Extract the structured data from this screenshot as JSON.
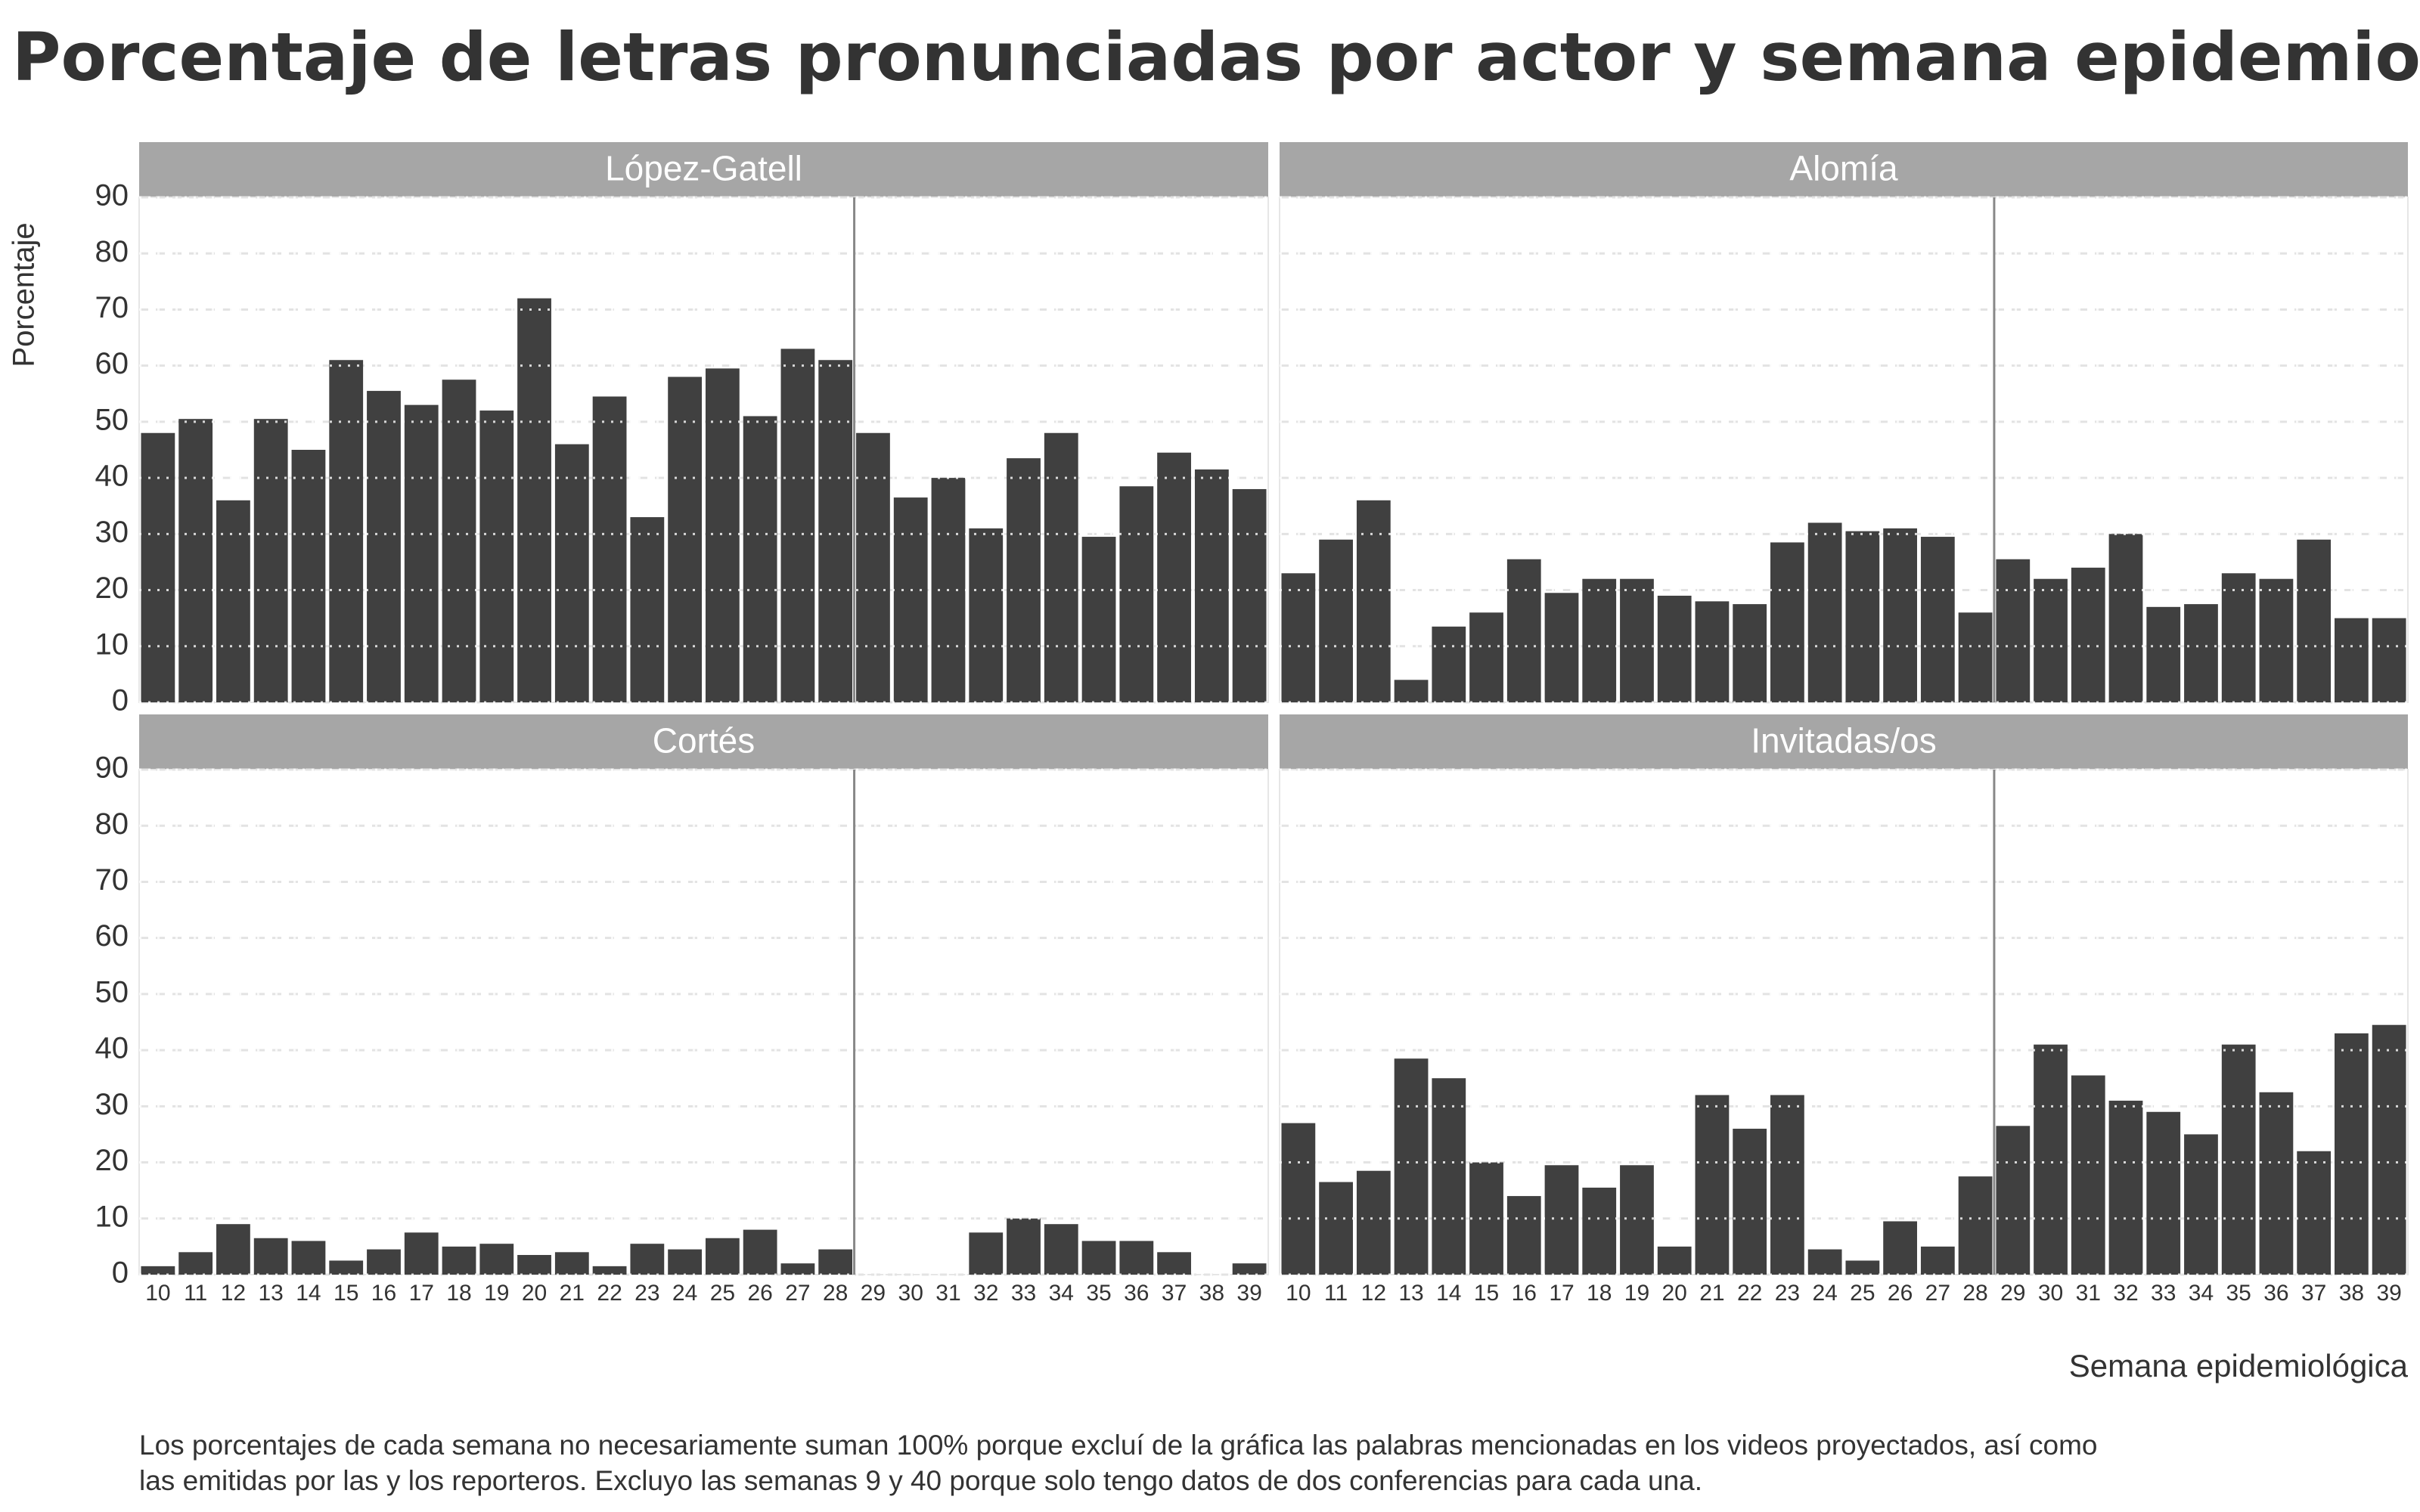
{
  "title": "Porcentaje de letras pronunciadas por actor y semana epidemiológica",
  "ylabel": "Porcentaje",
  "xlabel": "Semana epidemiológica",
  "note": [
    "Los porcentajes de cada semana no necesariamente suman 100% porque excluí de la gráfica las palabras mencionadas en los videos proyectados, así como",
    "las emitidas por las y los reporteros. Excluyo las semanas 9 y 40 porque solo tengo datos de dos conferencias para cada una."
  ],
  "chart_data": [
    {
      "type": "bar",
      "title": "López-Gatell",
      "color": "#404040",
      "grid": true,
      "categories": [
        "10",
        "11",
        "12",
        "13",
        "14",
        "15",
        "16",
        "17",
        "18",
        "19",
        "20",
        "21",
        "22",
        "23",
        "24",
        "25",
        "26",
        "27",
        "28",
        "29",
        "30",
        "31",
        "32",
        "33",
        "34",
        "35",
        "36",
        "37",
        "38",
        "39"
      ],
      "values": [
        48,
        50.5,
        36,
        50.5,
        45,
        61,
        55.5,
        53,
        57.5,
        52,
        72,
        46,
        54.5,
        33,
        58,
        59.5,
        51,
        63,
        61,
        48,
        36.5,
        40,
        31,
        43.5,
        48,
        29.5,
        38.5,
        44.5,
        41.5,
        38
      ],
      "ylim": [
        0,
        90
      ],
      "yticks": [
        0,
        10,
        20,
        30,
        40,
        50,
        60,
        70,
        80,
        90
      ]
    },
    {
      "type": "bar",
      "title": "Alomía",
      "color": "#404040",
      "grid": true,
      "categories": [
        "10",
        "11",
        "12",
        "13",
        "14",
        "15",
        "16",
        "17",
        "18",
        "19",
        "20",
        "21",
        "22",
        "23",
        "24",
        "25",
        "26",
        "27",
        "28",
        "29",
        "30",
        "31",
        "32",
        "33",
        "34",
        "35",
        "36",
        "37",
        "38",
        "39"
      ],
      "values": [
        23,
        29,
        36,
        4,
        13.5,
        16,
        25.5,
        19.5,
        22,
        22,
        19,
        18,
        17.5,
        28.5,
        32,
        30.5,
        31,
        29.5,
        16,
        25.5,
        22,
        24,
        30,
        17,
        17.5,
        23,
        22,
        29,
        15,
        15
      ],
      "ylim": [
        0,
        90
      ],
      "yticks": [
        0,
        10,
        20,
        30,
        40,
        50,
        60,
        70,
        80,
        90
      ]
    },
    {
      "type": "bar",
      "title": "Cortés",
      "color": "#404040",
      "grid": true,
      "categories": [
        "10",
        "11",
        "12",
        "13",
        "14",
        "15",
        "16",
        "17",
        "18",
        "19",
        "20",
        "21",
        "22",
        "23",
        "24",
        "25",
        "26",
        "27",
        "28",
        "29",
        "30",
        "31",
        "32",
        "33",
        "34",
        "35",
        "36",
        "37",
        "38",
        "39"
      ],
      "values": [
        1.5,
        4,
        9,
        6.5,
        6,
        2.5,
        4.5,
        7.5,
        5,
        5.5,
        3.5,
        4,
        1.5,
        5.5,
        4.5,
        6.5,
        8,
        2,
        4.5,
        0,
        0,
        0,
        7.5,
        10,
        9,
        6,
        6,
        4,
        0,
        2
      ],
      "ylim": [
        0,
        90
      ],
      "yticks": [
        0,
        10,
        20,
        30,
        40,
        50,
        60,
        70,
        80,
        90
      ]
    },
    {
      "type": "bar",
      "title": "Invitadas/os",
      "color": "#404040",
      "grid": true,
      "categories": [
        "10",
        "11",
        "12",
        "13",
        "14",
        "15",
        "16",
        "17",
        "18",
        "19",
        "20",
        "21",
        "22",
        "23",
        "24",
        "25",
        "26",
        "27",
        "28",
        "29",
        "30",
        "31",
        "32",
        "33",
        "34",
        "35",
        "36",
        "37",
        "38",
        "39"
      ],
      "values": [
        27,
        16.5,
        18.5,
        38.5,
        35,
        20,
        14,
        19.5,
        15.5,
        19.5,
        5,
        32,
        26,
        32,
        4.5,
        2.5,
        9.5,
        5,
        17.5,
        26.5,
        41,
        35.5,
        31,
        29,
        25,
        41,
        32.5,
        22,
        43,
        44.5
      ],
      "ylim": [
        0,
        90
      ],
      "yticks": [
        0,
        10,
        20,
        30,
        40,
        50,
        60,
        70,
        80,
        90
      ]
    }
  ]
}
